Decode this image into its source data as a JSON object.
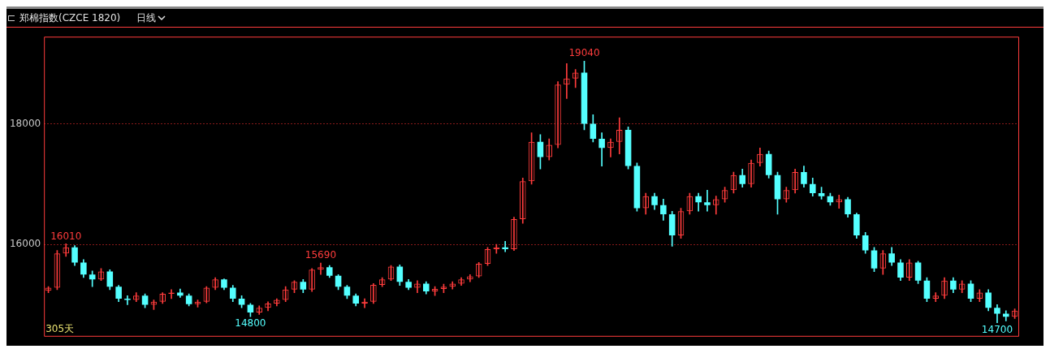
{
  "chart_data": {
    "type": "candlestick",
    "title": "郑棉指数(CZCE 1820)",
    "subtitle": "日线",
    "colors": [
      "#ff3c3c",
      "#ff3c3c",
      "#ff3c3c",
      "#54ffff",
      "#54ffff",
      "#54ffff",
      "#ff3c3c",
      "#54ffff",
      "#54ffff",
      "#54ffff",
      "#ff3c3c",
      "#54ffff",
      "#ff3c3c",
      "#ff3c3c",
      "#ff3c3c",
      "#54ffff",
      "#54ffff",
      "#ff3c3c",
      "#ff3c3c",
      "#ff3c3c",
      "#54ffff",
      "#54ffff",
      "#54ffff",
      "#54ffff",
      "#ff3c3c",
      "#ff3c3c",
      "#ff3c3c",
      "#ff3c3c",
      "#ff3c3c",
      "#54ffff",
      "#ff3c3c",
      "#ff3c3c",
      "#54ffff",
      "#54ffff",
      "#54ffff",
      "#54ffff",
      "#ff3c3c",
      "#ff3c3c",
      "#ff3c3c",
      "#ff3c3c",
      "#54ffff",
      "#54ffff",
      "#ff3c3c",
      "#54ffff",
      "#ff3c3c",
      "#ff3c3c",
      "#ff3c3c",
      "#ff3c3c",
      "#ff3c3c",
      "#ff3c3c",
      "#ff3c3c",
      "#ff3c3c",
      "#54ffff",
      "#ff3c3c",
      "#ff3c3c",
      "#ff3c3c",
      "#54ffff",
      "#ff3c3c",
      "#ff3c3c",
      "#ff3c3c",
      "#ff3c3c",
      "#54ffff",
      "#54ffff",
      "#54ffff",
      "#ff3c3c",
      "#ff3c3c",
      "#54ffff",
      "#54ffff",
      "#ff3c3c",
      "#54ffff",
      "#54ffff",
      "#54ffff",
      "#ff3c3c",
      "#ff3c3c",
      "#54ffff",
      "#54ffff",
      "#ff3c3c",
      "#ff3c3c",
      "#ff3c3c",
      "#54ffff",
      "#ff3c3c",
      "#ff3c3c",
      "#54ffff",
      "#54ffff",
      "#ff3c3c",
      "#ff3c3c",
      "#54ffff",
      "#54ffff",
      "#54ffff",
      "#54ffff",
      "#ff3c3c",
      "#54ffff",
      "#54ffff",
      "#54ffff",
      "#54ffff",
      "#ff3c3c",
      "#54ffff",
      "#54ffff",
      "#ff3c3c",
      "#54ffff",
      "#54ffff",
      "#ff3c3c",
      "#ff3c3c",
      "#54ffff",
      "#ff3c3c",
      "#54ffff",
      "#ff3c3c",
      "#54ffff",
      "#54ffff",
      "#54ffff",
      "#ff3c3c"
    ],
    "ylim": [
      14470,
      19445
    ],
    "yticks": [
      16000,
      18000
    ],
    "grid": "y",
    "tick_labels": "y",
    "annotations": [
      {
        "text": "16010",
        "y": 16010
      },
      {
        "text": "15690",
        "y": 15690
      },
      {
        "text": "19040",
        "y": 19040
      },
      {
        "text": "14800",
        "y": 14800
      },
      {
        "text": "14700",
        "y": 14700
      },
      "305天"
    ],
    "categories": [
      null,
      null,
      null,
      null,
      null,
      null,
      null,
      null,
      null,
      null,
      null,
      null,
      null,
      null,
      null,
      null,
      null,
      null,
      null,
      null,
      null,
      null,
      null,
      null,
      null,
      null,
      null,
      null,
      null,
      null,
      null,
      null,
      null,
      null,
      null,
      null,
      null,
      null,
      null,
      null,
      null,
      null,
      null,
      null,
      null,
      null,
      null,
      null,
      null,
      null,
      null,
      null,
      null,
      null,
      null,
      null,
      null,
      null,
      null,
      null,
      null,
      null,
      null,
      null,
      null,
      null,
      null,
      null,
      null,
      null,
      null,
      null,
      null,
      null,
      null,
      null,
      null,
      null,
      null,
      null,
      null,
      null,
      null,
      null,
      null,
      null,
      null,
      null,
      null,
      null,
      null,
      null,
      null,
      null,
      null,
      null,
      null,
      null,
      null,
      null,
      null,
      null,
      null,
      null,
      null,
      null,
      null,
      null,
      null,
      null,
      null
    ],
    "ohlc": [
      [
        15230,
        15300,
        15200,
        15280
      ],
      [
        15280,
        15900,
        15250,
        15850
      ],
      [
        15850,
        16010,
        15800,
        15950
      ],
      [
        15950,
        15980,
        15650,
        15700
      ],
      [
        15700,
        15750,
        15450,
        15500
      ],
      [
        15500,
        15560,
        15300,
        15420
      ],
      [
        15420,
        15600,
        15400,
        15550
      ],
      [
        15550,
        15580,
        15250,
        15300
      ],
      [
        15300,
        15320,
        15050,
        15100
      ],
      [
        15100,
        15150,
        15000,
        15080
      ],
      [
        15080,
        15200,
        15050,
        15150
      ],
      [
        15150,
        15180,
        14950,
        15000
      ],
      [
        15000,
        15080,
        14920,
        15050
      ],
      [
        15050,
        15200,
        15020,
        15180
      ],
      [
        15180,
        15250,
        15100,
        15200
      ],
      [
        15200,
        15260,
        15120,
        15150
      ],
      [
        15150,
        15180,
        14980,
        15010
      ],
      [
        15010,
        15080,
        14960,
        15050
      ],
      [
        15050,
        15300,
        15030,
        15280
      ],
      [
        15280,
        15450,
        15250,
        15420
      ],
      [
        15420,
        15430,
        15250,
        15280
      ],
      [
        15280,
        15320,
        15050,
        15100
      ],
      [
        15100,
        15150,
        14950,
        15000
      ],
      [
        15000,
        15020,
        14800,
        14870
      ],
      [
        14870,
        14980,
        14840,
        14950
      ],
      [
        14950,
        15050,
        14900,
        15020
      ],
      [
        15020,
        15100,
        14980,
        15080
      ],
      [
        15080,
        15300,
        15050,
        15250
      ],
      [
        15250,
        15400,
        15200,
        15380
      ],
      [
        15380,
        15420,
        15200,
        15250
      ],
      [
        15250,
        15600,
        15220,
        15580
      ],
      [
        15580,
        15690,
        15500,
        15620
      ],
      [
        15620,
        15650,
        15450,
        15480
      ],
      [
        15480,
        15500,
        15250,
        15300
      ],
      [
        15300,
        15320,
        15100,
        15150
      ],
      [
        15150,
        15180,
        14980,
        15020
      ],
      [
        15020,
        15100,
        14950,
        15050
      ],
      [
        15050,
        15350,
        15020,
        15330
      ],
      [
        15330,
        15450,
        15300,
        15420
      ],
      [
        15420,
        15650,
        15400,
        15630
      ],
      [
        15630,
        15660,
        15320,
        15380
      ],
      [
        15380,
        15420,
        15250,
        15280
      ],
      [
        15280,
        15400,
        15200,
        15350
      ],
      [
        15350,
        15380,
        15180,
        15220
      ],
      [
        15220,
        15300,
        15150,
        15260
      ],
      [
        15260,
        15340,
        15200,
        15300
      ],
      [
        15300,
        15380,
        15260,
        15350
      ],
      [
        15350,
        15450,
        15320,
        15420
      ],
      [
        15420,
        15500,
        15380,
        15470
      ],
      [
        15470,
        15700,
        15450,
        15680
      ],
      [
        15680,
        15950,
        15650,
        15920
      ],
      [
        15920,
        16000,
        15850,
        15950
      ],
      [
        15950,
        16050,
        15880,
        15920
      ],
      [
        15920,
        16450,
        15900,
        16420
      ],
      [
        16420,
        17100,
        16350,
        17050
      ],
      [
        17050,
        17850,
        17000,
        17700
      ],
      [
        17700,
        17820,
        17250,
        17450
      ],
      [
        17450,
        17750,
        17400,
        17650
      ],
      [
        17650,
        18700,
        17600,
        18650
      ],
      [
        18650,
        19000,
        18420,
        18750
      ],
      [
        18750,
        18900,
        18600,
        18850
      ],
      [
        18850,
        19040,
        17900,
        18000
      ],
      [
        18000,
        18150,
        17700,
        17750
      ],
      [
        17750,
        17850,
        17300,
        17600
      ],
      [
        17600,
        17750,
        17450,
        17700
      ],
      [
        17700,
        18100,
        17500,
        17900
      ],
      [
        17900,
        17950,
        17250,
        17300
      ],
      [
        17300,
        17350,
        16550,
        16600
      ],
      [
        16600,
        16850,
        16500,
        16800
      ],
      [
        16800,
        16850,
        16580,
        16650
      ],
      [
        16650,
        16750,
        16400,
        16500
      ],
      [
        16500,
        16550,
        15970,
        16150
      ],
      [
        16150,
        16600,
        16100,
        16550
      ],
      [
        16550,
        16850,
        16500,
        16800
      ],
      [
        16800,
        16850,
        16550,
        16700
      ],
      [
        16700,
        16900,
        16550,
        16650
      ],
      [
        16650,
        16800,
        16500,
        16750
      ],
      [
        16750,
        16950,
        16700,
        16900
      ],
      [
        16900,
        17200,
        16850,
        17150
      ],
      [
        17150,
        17250,
        16950,
        17000
      ],
      [
        17000,
        17400,
        16950,
        17350
      ],
      [
        17350,
        17600,
        17300,
        17500
      ],
      [
        17500,
        17550,
        17100,
        17150
      ],
      [
        17150,
        17200,
        16500,
        16750
      ],
      [
        16750,
        16950,
        16700,
        16900
      ],
      [
        16900,
        17250,
        16850,
        17200
      ],
      [
        17200,
        17300,
        16950,
        17000
      ],
      [
        17000,
        17100,
        16800,
        16850
      ],
      [
        16850,
        16950,
        16750,
        16800
      ],
      [
        16800,
        16850,
        16650,
        16700
      ],
      [
        16700,
        16820,
        16600,
        16750
      ],
      [
        16750,
        16780,
        16450,
        16500
      ],
      [
        16500,
        16520,
        16100,
        16150
      ],
      [
        16150,
        16200,
        15850,
        15900
      ],
      [
        15900,
        15950,
        15550,
        15600
      ],
      [
        15600,
        15900,
        15500,
        15850
      ],
      [
        15850,
        15950,
        15650,
        15700
      ],
      [
        15700,
        15750,
        15400,
        15450
      ],
      [
        15450,
        15750,
        15400,
        15700
      ],
      [
        15700,
        15720,
        15350,
        15400
      ],
      [
        15400,
        15450,
        15050,
        15100
      ],
      [
        15100,
        15200,
        15050,
        15150
      ],
      [
        15150,
        15450,
        15100,
        15400
      ],
      [
        15400,
        15450,
        15200,
        15250
      ],
      [
        15250,
        15400,
        15200,
        15350
      ],
      [
        15350,
        15400,
        15050,
        15100
      ],
      [
        15100,
        15250,
        15050,
        15200
      ],
      [
        15200,
        15250,
        14900,
        14950
      ],
      [
        14950,
        15000,
        14700,
        14850
      ],
      [
        14850,
        14900,
        14730,
        14800
      ],
      [
        14800,
        14930,
        14770,
        14900
      ]
    ]
  }
}
